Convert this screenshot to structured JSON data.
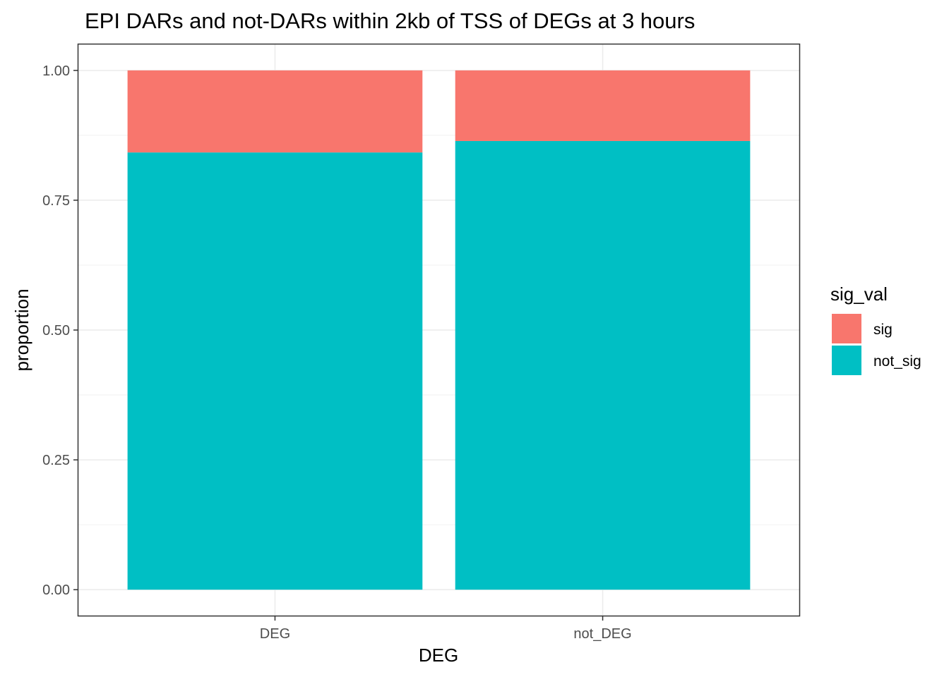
{
  "chart_data": {
    "type": "bar",
    "stacked": true,
    "title": "EPI DARs and not-DARs within 2kb of TSS of DEGs at 3 hours",
    "xlabel": "DEG",
    "ylabel": "proportion",
    "categories": [
      "DEG",
      "not_DEG"
    ],
    "series": [
      {
        "name": "not_sig",
        "values": [
          0.842,
          0.864
        ],
        "color": "#00BFC4"
      },
      {
        "name": "sig",
        "values": [
          0.158,
          0.136
        ],
        "color": "#F8766D"
      }
    ],
    "ylim": [
      -0.05,
      1.05
    ],
    "yticks": [
      0.0,
      0.25,
      0.5,
      0.75,
      1.0
    ],
    "ytick_labels": [
      "0.00",
      "0.25",
      "0.50",
      "0.75",
      "1.00"
    ],
    "grid": true,
    "legend": {
      "title": "sig_val",
      "placement": "right",
      "items": [
        {
          "label": "sig",
          "color": "#F8766D"
        },
        {
          "label": "not_sig",
          "color": "#00BFC4"
        }
      ]
    }
  }
}
